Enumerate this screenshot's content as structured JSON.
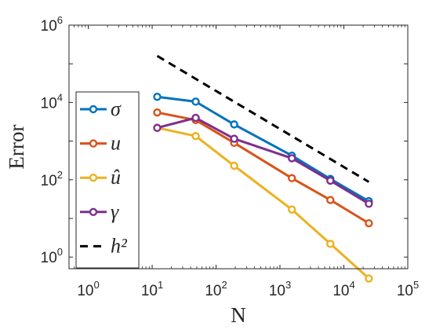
{
  "chart_data": {
    "type": "line",
    "xscale": "log",
    "yscale": "log",
    "xlim": [
      0.5,
      100000
    ],
    "ylim": [
      0.5,
      1000000
    ],
    "xlabel": "N",
    "ylabel": "Error",
    "x_ticks": [
      1,
      10,
      100,
      1000,
      10000,
      100000
    ],
    "y_ticks": [
      1,
      100,
      10000,
      1000000
    ],
    "x_tick_labels": [
      {
        "base": "10",
        "exp": "0"
      },
      {
        "base": "10",
        "exp": "1"
      },
      {
        "base": "10",
        "exp": "2"
      },
      {
        "base": "10",
        "exp": "3"
      },
      {
        "base": "10",
        "exp": "4"
      },
      {
        "base": "10",
        "exp": "5"
      }
    ],
    "y_tick_labels": [
      {
        "base": "10",
        "exp": "0"
      },
      {
        "base": "10",
        "exp": "2"
      },
      {
        "base": "10",
        "exp": "4"
      },
      {
        "base": "10",
        "exp": "6"
      }
    ],
    "legend_position": "left",
    "grid": false,
    "series": [
      {
        "name": "σ",
        "color": "#0072BD",
        "marker": "circle",
        "x": [
          12,
          48,
          192,
          1536,
          6144,
          24576
        ],
        "y": [
          14000,
          10500,
          2700,
          420,
          105,
          28
        ]
      },
      {
        "name": "u",
        "color": "#D95319",
        "marker": "circle",
        "x": [
          12,
          48,
          192,
          1536,
          6144,
          24576
        ],
        "y": [
          5500,
          3500,
          900,
          110,
          30,
          7.5
        ]
      },
      {
        "name": "û",
        "color": "#EDB120",
        "marker": "circle",
        "x": [
          12,
          48,
          192,
          1536,
          6144,
          24576
        ],
        "y": [
          2200,
          1350,
          230,
          17,
          2.2,
          0.28
        ]
      },
      {
        "name": "γ",
        "color": "#7E2F8E",
        "marker": "circle",
        "x": [
          12,
          48,
          192,
          1536,
          6144,
          24576
        ],
        "y": [
          2200,
          4000,
          1150,
          360,
          95,
          24
        ]
      },
      {
        "name": "h²",
        "color": "#000000",
        "marker": "none",
        "dash": true,
        "x": [
          12,
          24576
        ],
        "y": [
          160000,
          88
        ]
      }
    ]
  }
}
